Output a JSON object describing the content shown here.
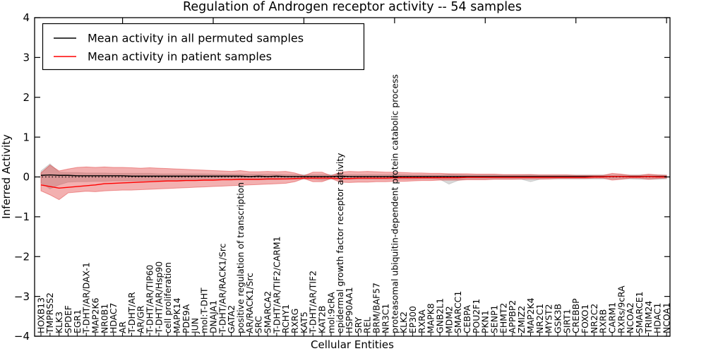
{
  "chart_data": {
    "type": "line",
    "title": "Regulation of Androgen receptor activity -- 54 samples",
    "xlabel": "Cellular Entities",
    "ylabel": "Inferred Activity",
    "ylim": [
      -4,
      4
    ],
    "yticks": [
      -4,
      -3,
      -2,
      -1,
      0,
      1,
      2,
      3,
      4
    ],
    "grid": false,
    "legend_position": "upper left",
    "categories": [
      "HOXB13",
      "TMPRSS2",
      "KLK3",
      "SPDEF",
      "EGR1",
      "T-DHT/AR/DAX-1",
      "MAP2K6",
      "NR0B1",
      "HDAC7",
      "AR",
      "T-DHT/AR",
      "AR/GR",
      "T-DHT/AR/TIP60",
      "T-DHT/AR/Hsp90",
      "cell proliferation",
      "MAPK14",
      "PDE9A",
      "JUN",
      "mol:T-DHT",
      "DNAJA1",
      "T-DHT/AR/RACK1/Src",
      "GATA2",
      "positive regulation of transcription",
      "AR/RACK1/Src",
      "SRC",
      "SMARCA2",
      "T-DHT/AR/TIF2/CARM1",
      "RCHY1",
      "RXRG",
      "KAT5",
      "T-DHT/AR/TIF2",
      "KAT2B",
      "mol:9cRA",
      "epidermal growth factor receptor activity",
      "HSP90AA1",
      "SRY",
      "REL",
      "BRM/BAF57",
      "NR3C1",
      "proteasomal ubiquitin-dependent protein catabolic process",
      "KLK2",
      "EP300",
      "RXRA",
      "MAPK8",
      "GNB2L1",
      "MDM2",
      "SMARCC1",
      "CEBPA",
      "POU2F1",
      "PKN1",
      "SENP1",
      "EHMT2",
      "APPBP2",
      "ZMIZ2",
      "MAP2K4",
      "NR2C1",
      "MYST2",
      "GSK3B",
      "SIRT1",
      "CREBBP",
      "FOXO1",
      "NR2C2",
      "RXRB",
      "CARM1",
      "RXRs/9cRA",
      "NCOA2",
      "SMARCE1",
      "TRIM24",
      "HDAC1",
      "NCOA1"
    ],
    "series": [
      {
        "name": "Mean activity in all permuted samples",
        "color": "#000000",
        "style": "solid",
        "values": [
          0.04,
          0.05,
          0.04,
          0.04,
          0.03,
          0.03,
          0.03,
          0.03,
          0.03,
          0.03,
          0.02,
          0.02,
          0.02,
          0.02,
          0.02,
          0.02,
          0.02,
          0.02,
          0.02,
          0.02,
          0.02,
          0.02,
          0.02,
          0.01,
          0.02,
          0.01,
          0.02,
          0.01,
          0.01,
          0.01,
          0.01,
          0.01,
          0.01,
          0.02,
          0.01,
          0.01,
          0.01,
          0.01,
          0.01,
          0.01,
          0.01,
          0.01,
          0.01,
          0.01,
          0.01,
          0.01,
          0.01,
          0.01,
          0.01,
          0.01,
          0.01,
          0.01,
          0.01,
          0.01,
          0.01,
          0.01,
          0.01,
          0.01,
          0.01,
          0.01,
          0.01,
          0.01,
          0.01,
          0.01,
          0.01,
          0.01,
          0.01,
          0.01,
          0.01,
          0.01
        ]
      },
      {
        "name": "Mean activity in patient samples",
        "color": "#ff0000",
        "style": "solid",
        "values": [
          -0.2,
          -0.24,
          -0.28,
          -0.26,
          -0.24,
          -0.22,
          -0.2,
          -0.17,
          -0.16,
          -0.15,
          -0.14,
          -0.13,
          -0.12,
          -0.11,
          -0.1,
          -0.1,
          -0.09,
          -0.09,
          -0.08,
          -0.08,
          -0.07,
          -0.07,
          -0.06,
          -0.06,
          -0.06,
          -0.05,
          -0.05,
          -0.05,
          -0.04,
          -0.03,
          -0.03,
          -0.03,
          -0.03,
          -0.04,
          -0.04,
          -0.03,
          -0.03,
          -0.03,
          -0.03,
          -0.02,
          -0.02,
          -0.02,
          -0.02,
          -0.02,
          -0.02,
          -0.02,
          -0.02,
          -0.01,
          -0.01,
          -0.01,
          -0.01,
          -0.01,
          -0.01,
          -0.01,
          -0.01,
          -0.01,
          -0.01,
          -0.01,
          -0.01,
          -0.01,
          -0.01,
          0.0,
          0.0,
          0.01,
          0.01,
          0.0,
          0.0,
          0.01,
          0.0,
          0.0
        ]
      }
    ],
    "bands": [
      {
        "name": "permuted-samples-range",
        "color": "#808080",
        "fill_opacity": 0.3,
        "edge_opacity": 0.25,
        "upper": [
          0.15,
          0.33,
          0.12,
          0.11,
          0.11,
          0.1,
          0.1,
          0.1,
          0.09,
          0.09,
          0.09,
          0.09,
          0.09,
          0.08,
          0.08,
          0.08,
          0.08,
          0.08,
          0.08,
          0.07,
          0.07,
          0.07,
          0.07,
          0.07,
          0.07,
          0.07,
          0.07,
          0.06,
          0.06,
          0.06,
          0.06,
          0.06,
          0.06,
          0.06,
          0.06,
          0.06,
          0.06,
          0.06,
          0.06,
          0.06,
          0.06,
          0.05,
          0.05,
          0.05,
          0.05,
          0.07,
          0.06,
          0.05,
          0.05,
          0.05,
          0.05,
          0.05,
          0.05,
          0.05,
          0.06,
          0.05,
          0.05,
          0.05,
          0.05,
          0.05,
          0.05,
          0.05,
          0.05,
          0.05,
          0.05,
          0.05,
          0.05,
          0.05,
          0.05,
          0.05
        ],
        "lower": [
          -0.15,
          -0.3,
          -0.2,
          -0.13,
          -0.12,
          -0.12,
          -0.11,
          -0.11,
          -0.1,
          -0.1,
          -0.1,
          -0.1,
          -0.09,
          -0.09,
          -0.09,
          -0.09,
          -0.08,
          -0.08,
          -0.08,
          -0.08,
          -0.07,
          -0.07,
          -0.07,
          -0.07,
          -0.07,
          -0.07,
          -0.07,
          -0.06,
          -0.06,
          -0.06,
          -0.06,
          -0.08,
          -0.06,
          -0.06,
          -0.06,
          -0.06,
          -0.06,
          -0.06,
          -0.06,
          -0.06,
          -0.06,
          -0.06,
          -0.05,
          -0.05,
          -0.06,
          -0.18,
          -0.09,
          -0.05,
          -0.05,
          -0.05,
          -0.05,
          -0.05,
          -0.05,
          -0.06,
          -0.12,
          -0.06,
          -0.05,
          -0.05,
          -0.05,
          -0.05,
          -0.05,
          -0.05,
          -0.05,
          -0.05,
          -0.05,
          -0.05,
          -0.06,
          -0.06,
          -0.06,
          -0.05
        ]
      },
      {
        "name": "patient-samples-range",
        "color": "#e03030",
        "fill_opacity": 0.38,
        "edge_opacity": 0.45,
        "upper": [
          0.1,
          0.3,
          0.15,
          0.2,
          0.24,
          0.25,
          0.24,
          0.25,
          0.24,
          0.24,
          0.23,
          0.22,
          0.23,
          0.22,
          0.21,
          0.2,
          0.19,
          0.18,
          0.17,
          0.16,
          0.15,
          0.14,
          0.16,
          0.13,
          0.13,
          0.14,
          0.13,
          0.14,
          0.1,
          0.03,
          0.12,
          0.12,
          0.03,
          0.12,
          0.14,
          0.13,
          0.14,
          0.13,
          0.12,
          0.12,
          0.11,
          0.1,
          0.1,
          0.09,
          0.09,
          0.08,
          0.08,
          0.08,
          0.07,
          0.07,
          0.07,
          0.06,
          0.06,
          0.06,
          0.06,
          0.05,
          0.05,
          0.05,
          0.05,
          0.04,
          0.04,
          0.04,
          0.04,
          0.09,
          0.07,
          0.04,
          0.04,
          0.07,
          0.05,
          0.04
        ],
        "lower": [
          -0.35,
          -0.45,
          -0.57,
          -0.4,
          -0.38,
          -0.36,
          -0.37,
          -0.35,
          -0.34,
          -0.33,
          -0.33,
          -0.32,
          -0.31,
          -0.3,
          -0.29,
          -0.28,
          -0.27,
          -0.26,
          -0.25,
          -0.24,
          -0.23,
          -0.22,
          -0.21,
          -0.2,
          -0.19,
          -0.18,
          -0.17,
          -0.16,
          -0.12,
          -0.04,
          -0.12,
          -0.12,
          -0.04,
          -0.13,
          -0.14,
          -0.13,
          -0.13,
          -0.12,
          -0.12,
          -0.11,
          -0.11,
          -0.1,
          -0.09,
          -0.09,
          -0.08,
          -0.08,
          -0.08,
          -0.07,
          -0.07,
          -0.07,
          -0.06,
          -0.06,
          -0.06,
          -0.05,
          -0.05,
          -0.05,
          -0.05,
          -0.04,
          -0.04,
          -0.04,
          -0.04,
          -0.03,
          -0.03,
          -0.08,
          -0.06,
          -0.03,
          -0.03,
          -0.06,
          -0.04,
          -0.03
        ]
      }
    ],
    "zero_line": {
      "style": "dotted",
      "color": "#000000",
      "y": 0
    }
  }
}
